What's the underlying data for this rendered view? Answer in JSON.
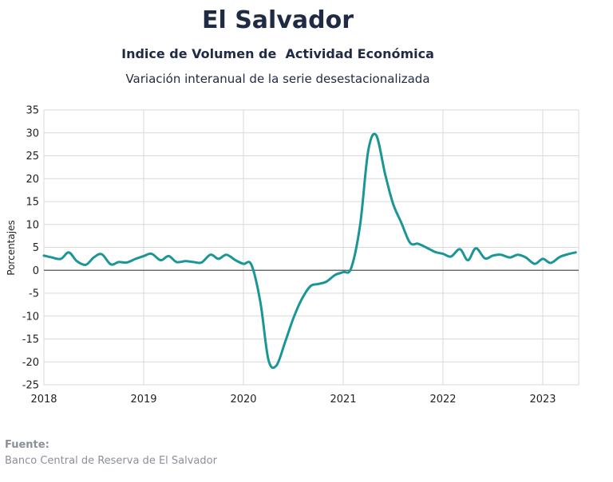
{
  "header": {
    "title": "El Salvador",
    "subtitle": "Indice de Volumen de  Actividad Económica",
    "subtitle2": "Variación interanual de la serie desestacionalizada"
  },
  "source": {
    "label": "Fuente:",
    "text": "Banco Central de Reserva de El Salvador"
  },
  "chart_data": {
    "type": "line",
    "ylabel": "Porcentajes",
    "xlabel": "",
    "ylim": [
      -25,
      35
    ],
    "yticks": [
      35,
      30,
      25,
      20,
      15,
      10,
      5,
      0,
      -5,
      -10,
      -15,
      -20,
      -25
    ],
    "xlim": [
      2018.0,
      2023.33
    ],
    "xticks": [
      "2018",
      "2019",
      "2020",
      "2021",
      "2022",
      "2023"
    ],
    "grid": true,
    "line_color": "#1a9696",
    "series": [
      {
        "x": [
          2018.0,
          2018.08,
          2018.17,
          2018.25,
          2018.33,
          2018.42,
          2018.5,
          2018.58,
          2018.67,
          2018.75,
          2018.83,
          2018.92,
          2019.0,
          2019.08,
          2019.17,
          2019.25,
          2019.33,
          2019.42,
          2019.5,
          2019.58,
          2019.67,
          2019.75,
          2019.83,
          2019.92,
          2020.0,
          2020.08,
          2020.17,
          2020.25,
          2020.33,
          2020.42,
          2020.5,
          2020.58,
          2020.67,
          2020.75,
          2020.83,
          2020.92,
          2021.0,
          2021.08,
          2021.17,
          2021.25,
          2021.33,
          2021.42,
          2021.5,
          2021.58,
          2021.67,
          2021.75,
          2021.83,
          2021.92,
          2022.0,
          2022.08,
          2022.17,
          2022.25,
          2022.33,
          2022.42,
          2022.5,
          2022.58,
          2022.67,
          2022.75,
          2022.83,
          2022.92,
          2023.0,
          2023.08,
          2023.17,
          2023.25,
          2023.33
        ],
        "values": [
          3.2,
          2.8,
          2.5,
          3.9,
          2.0,
          1.2,
          2.8,
          3.5,
          1.3,
          1.8,
          1.7,
          2.5,
          3.1,
          3.6,
          2.2,
          3.1,
          1.8,
          2.0,
          1.8,
          1.7,
          3.4,
          2.5,
          3.4,
          2.2,
          1.4,
          1.2,
          -7.0,
          -19.5,
          -20.8,
          -15.5,
          -10.5,
          -6.5,
          -3.5,
          -3.0,
          -2.5,
          -1.0,
          -0.4,
          0.5,
          10.0,
          26.0,
          29.5,
          21.0,
          14.5,
          10.5,
          6.0,
          5.8,
          5.0,
          4.0,
          3.6,
          3.0,
          4.6,
          2.2,
          4.8,
          2.6,
          3.2,
          3.4,
          2.8,
          3.4,
          2.8,
          1.4,
          2.5,
          1.6,
          2.9,
          3.5,
          3.9
        ]
      }
    ]
  }
}
